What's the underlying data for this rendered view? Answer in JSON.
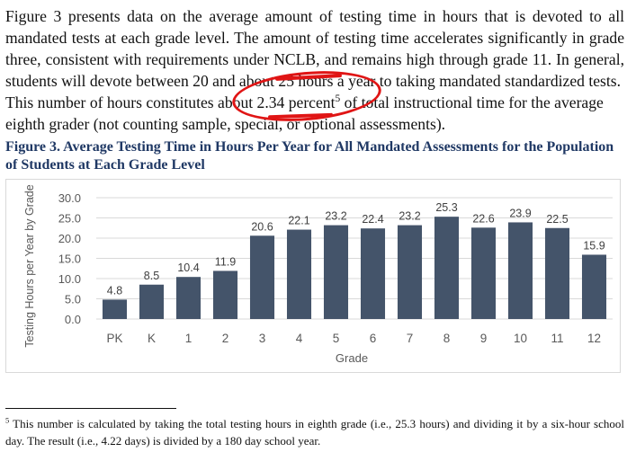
{
  "paragraph": {
    "l1": "Figure 3 presents data on the average amount of testing time in hours that is devoted to all",
    "l2": "mandated tests at each grade level. The amount of testing time accelerates significantly in grade",
    "l3": "three, consistent with requirements under NCLB, and remains high through grade 11. In general,",
    "l4a": "students will devote between 20 and abo",
    "l4b": "ut 25 hours a year to taking mandated standardized tests.",
    "l5a": "This number of hours constitutes ab",
    "l5b": "out 2.34 percent",
    "l5sup": "5",
    "l5c": " of total instructional time for the average",
    "l6": "eighth grader (not counting sample, special, or optional assessments)."
  },
  "figure_title": "Figure 3. Average Testing Time in Hours Per Year for All Mandated Assessments for the Population of Students at Each Grade Level",
  "chart_data": {
    "type": "bar",
    "title": "",
    "xlabel": "Grade",
    "ylabel": "Testing Hours per Year by Grade",
    "categories": [
      "PK",
      "K",
      "1",
      "2",
      "3",
      "4",
      "5",
      "6",
      "7",
      "8",
      "9",
      "10",
      "11",
      "12"
    ],
    "values": [
      4.8,
      8.5,
      10.4,
      11.9,
      20.6,
      22.1,
      23.2,
      22.4,
      23.2,
      25.3,
      22.6,
      23.9,
      22.5,
      15.9
    ],
    "data_labels": [
      "4.8",
      "8.5",
      "10.4",
      "11.9",
      "20.6",
      "22.1",
      "23.2",
      "22.4",
      "23.2",
      "25.3",
      "22.6",
      "23.9",
      "22.5",
      "15.9"
    ],
    "yticks": [
      "0.0",
      "5.0",
      "10.0",
      "15.0",
      "20.0",
      "25.0",
      "30.0"
    ],
    "ylim": [
      0,
      30
    ],
    "grid": true,
    "legend": "none",
    "bar_color": "#44546a"
  },
  "footnote": {
    "marker": "5",
    "text": " This number is calculated by taking the total testing hours in eighth grade (i.e., 25.3 hours) and dividing it by a six-hour school day. The result (i.e., 4.22 days) is divided by a 180 day school year."
  },
  "colors": {
    "annotation": "#e01515",
    "figure_title": "#1f3864",
    "axis_text": "#595959"
  }
}
